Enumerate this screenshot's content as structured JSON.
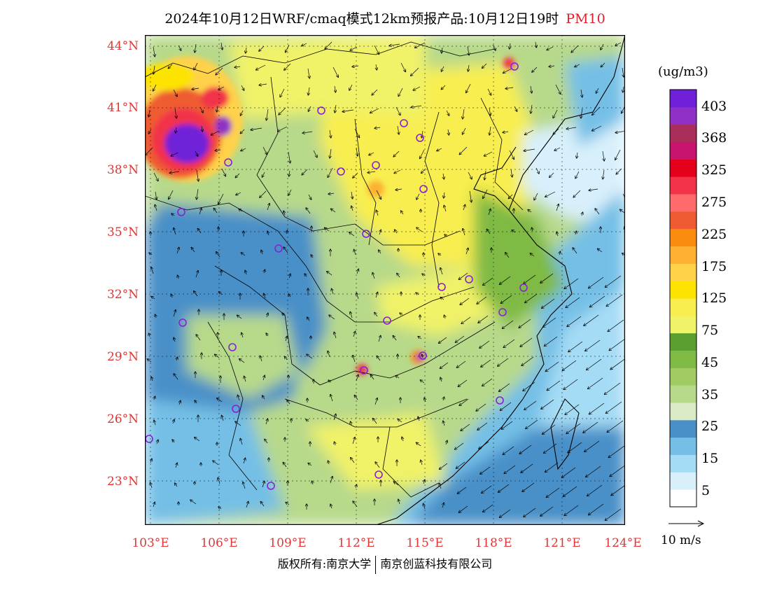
{
  "title": {
    "main": "2024年10月12日WRF/cmaq模式12km预报产品:10月12日19时",
    "variable": "PM10"
  },
  "map": {
    "lat_labels": [
      "44°N",
      "41°N",
      "38°N",
      "35°N",
      "32°N",
      "29°N",
      "26°N",
      "23°N"
    ],
    "lon_labels": [
      "103°E",
      "106°E",
      "109°E",
      "112°E",
      "115°E",
      "118°E",
      "121°E",
      "124°E"
    ]
  },
  "colorbar": {
    "unit": "(ug/m3)",
    "colors": [
      "#ffffff",
      "#d8f0fb",
      "#a5dcf5",
      "#75bfe6",
      "#4a90c8",
      "#dbeac6",
      "#b7d98a",
      "#a0cc63",
      "#7fba45",
      "#5a9e2f",
      "#f0f268",
      "#f8ee50",
      "#fde300",
      "#ffd24a",
      "#fdb031",
      "#fa8c10",
      "#ef5b30",
      "#ff6a6a",
      "#f23248",
      "#e5001c",
      "#c8146e",
      "#aa2e5a",
      "#9030c6",
      "#7020d8"
    ],
    "tick_labels": [
      "5",
      "15",
      "25",
      "35",
      "45",
      "75",
      "125",
      "175",
      "225",
      "275",
      "325",
      "368",
      "403"
    ]
  },
  "wind": {
    "reference_label": "10 m/s"
  },
  "copyright": {
    "left": "版权所有:南京大学",
    "right": "南京创蓝科技有限公司"
  }
}
